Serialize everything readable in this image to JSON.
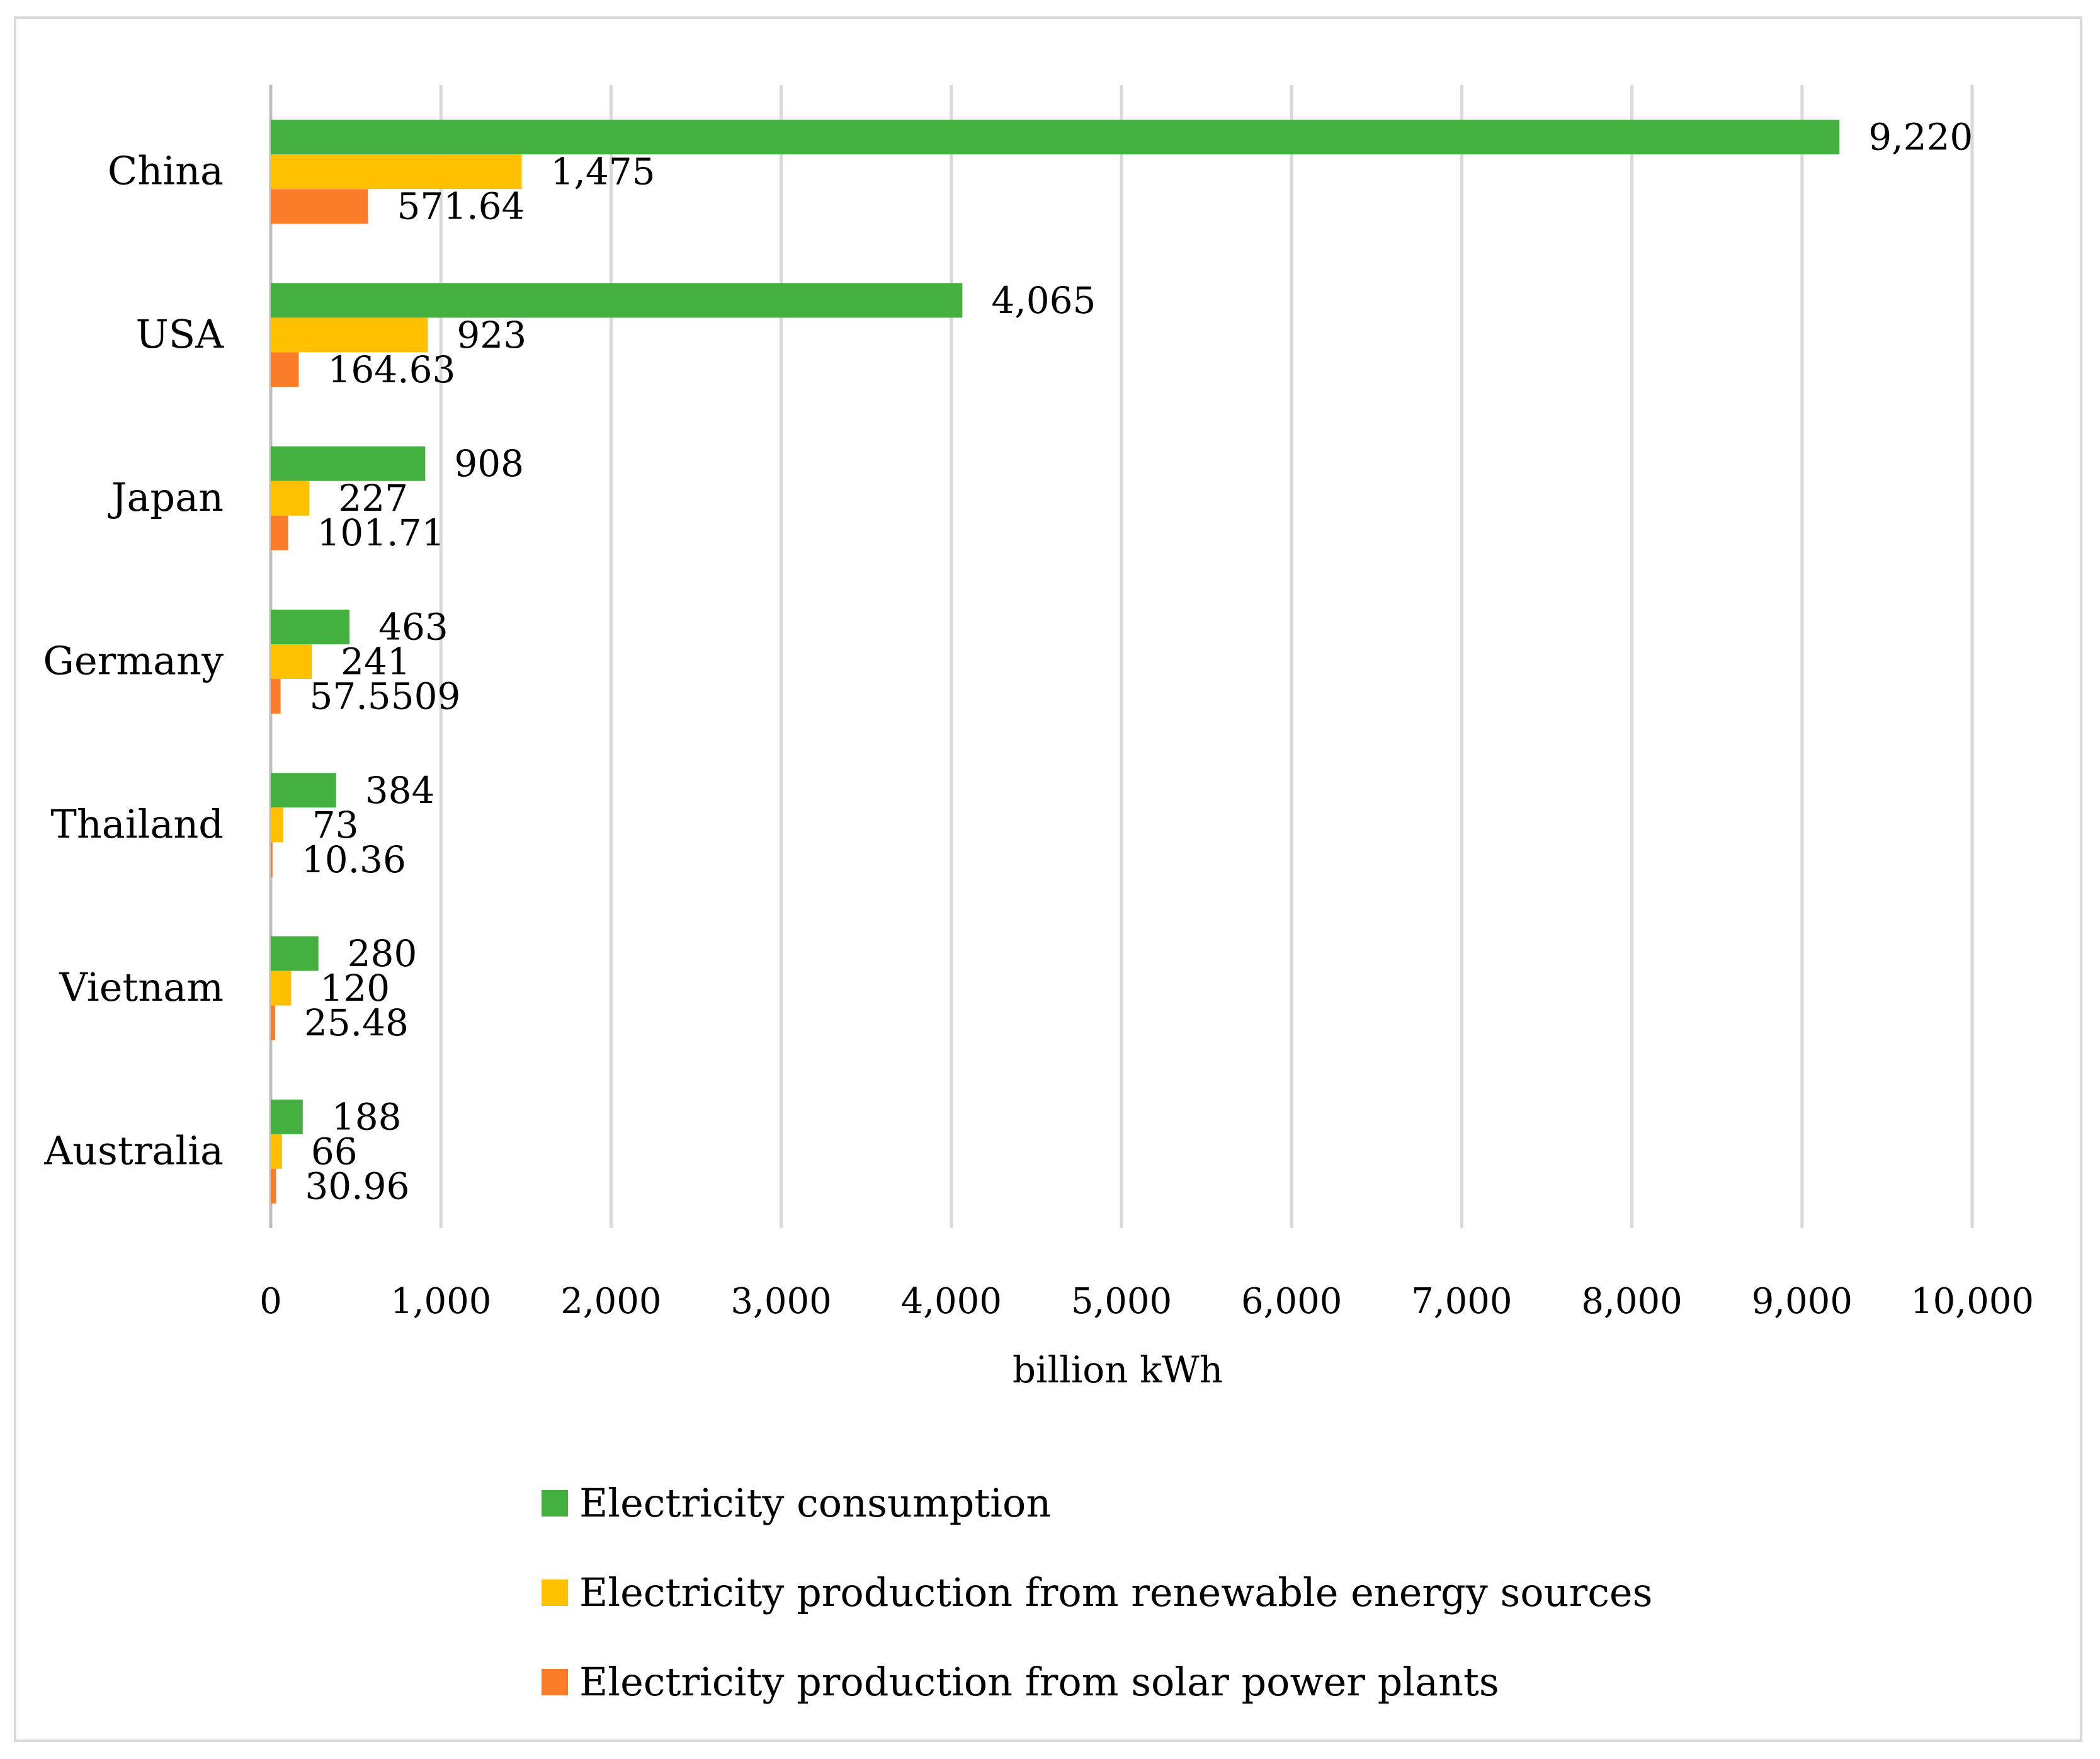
{
  "chart_data": {
    "type": "bar",
    "orientation": "horizontal",
    "categories": [
      "China",
      "USA",
      "Japan",
      "Germany",
      "Thailand",
      "Vietnam",
      "Australia"
    ],
    "series": [
      {
        "name": "Electricity consumption",
        "color": "#43b040",
        "values": [
          9220,
          4065,
          908,
          463,
          384,
          280,
          188
        ],
        "labels": [
          "9,220",
          "4,065",
          "908",
          "463",
          "384",
          "280",
          "188"
        ]
      },
      {
        "name": "Electricity production from renewable energy sources",
        "color": "#ffc000",
        "values": [
          1475,
          923,
          227,
          241,
          73,
          120,
          66
        ],
        "labels": [
          "1,475",
          "923",
          "227",
          "241",
          "73",
          "120",
          "66"
        ]
      },
      {
        "name": "Electricity production from solar power plants",
        "color": "#fb7d2a",
        "values": [
          571.64,
          164.63,
          101.71,
          57.5509,
          10.36,
          25.48,
          30.96
        ],
        "labels": [
          "571.64",
          "164.63",
          "101.71",
          "57.5509",
          "10.36",
          "25.48",
          "30.96"
        ]
      }
    ],
    "xlabel": "billion kWh",
    "ylabel": "",
    "xlim": [
      0,
      10000
    ],
    "xticks": [
      0,
      1000,
      2000,
      3000,
      4000,
      5000,
      6000,
      7000,
      8000,
      9000,
      10000
    ],
    "xtick_labels": [
      "0",
      "1,000",
      "2,000",
      "3,000",
      "4,000",
      "5,000",
      "6,000",
      "7,000",
      "8,000",
      "9,000",
      "10,000"
    ],
    "grid": "vertical",
    "legend_position": "bottom"
  }
}
